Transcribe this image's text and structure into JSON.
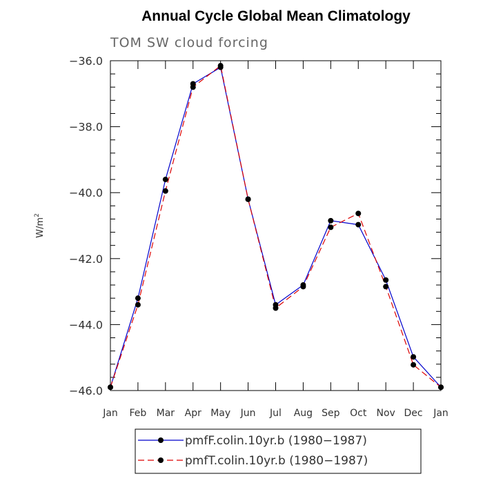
{
  "chart_data": {
    "type": "line",
    "title": "Annual Cycle Global Mean Climatology",
    "subtitle": "TOM SW cloud forcing",
    "xlabel": "",
    "ylabel": "W/m",
    "ylabel_superscript": "2",
    "ylim": [
      -46.0,
      -36.0
    ],
    "yticks": [
      -46.0,
      -44.0,
      -42.0,
      -40.0,
      -38.0,
      -36.0
    ],
    "ytick_labels": [
      "−46.0",
      "−44.0",
      "−42.0",
      "−40.0",
      "−38.0",
      "−36.0"
    ],
    "categories": [
      "Jan",
      "Feb",
      "Mar",
      "Apr",
      "May",
      "Jun",
      "Jul",
      "Aug",
      "Sep",
      "Oct",
      "Nov",
      "Dec",
      "Jan"
    ],
    "series": [
      {
        "name": "pmfF.colin.10yr.b (1980−1987)",
        "color": "#0000cc",
        "style": "solid",
        "values": [
          -45.9,
          -43.2,
          -39.6,
          -36.7,
          -36.2,
          -40.2,
          -43.4,
          -42.8,
          -40.85,
          -40.97,
          -42.65,
          -44.98,
          -45.9
        ]
      },
      {
        "name": "pmfT.colin.10yr.b (1980−1987)",
        "color": "#dd0000",
        "style": "dashed",
        "values": [
          -45.9,
          -43.4,
          -39.95,
          -36.8,
          -36.15,
          -40.2,
          -43.5,
          -42.85,
          -41.05,
          -40.63,
          -42.85,
          -45.22,
          -45.9
        ]
      }
    ]
  }
}
